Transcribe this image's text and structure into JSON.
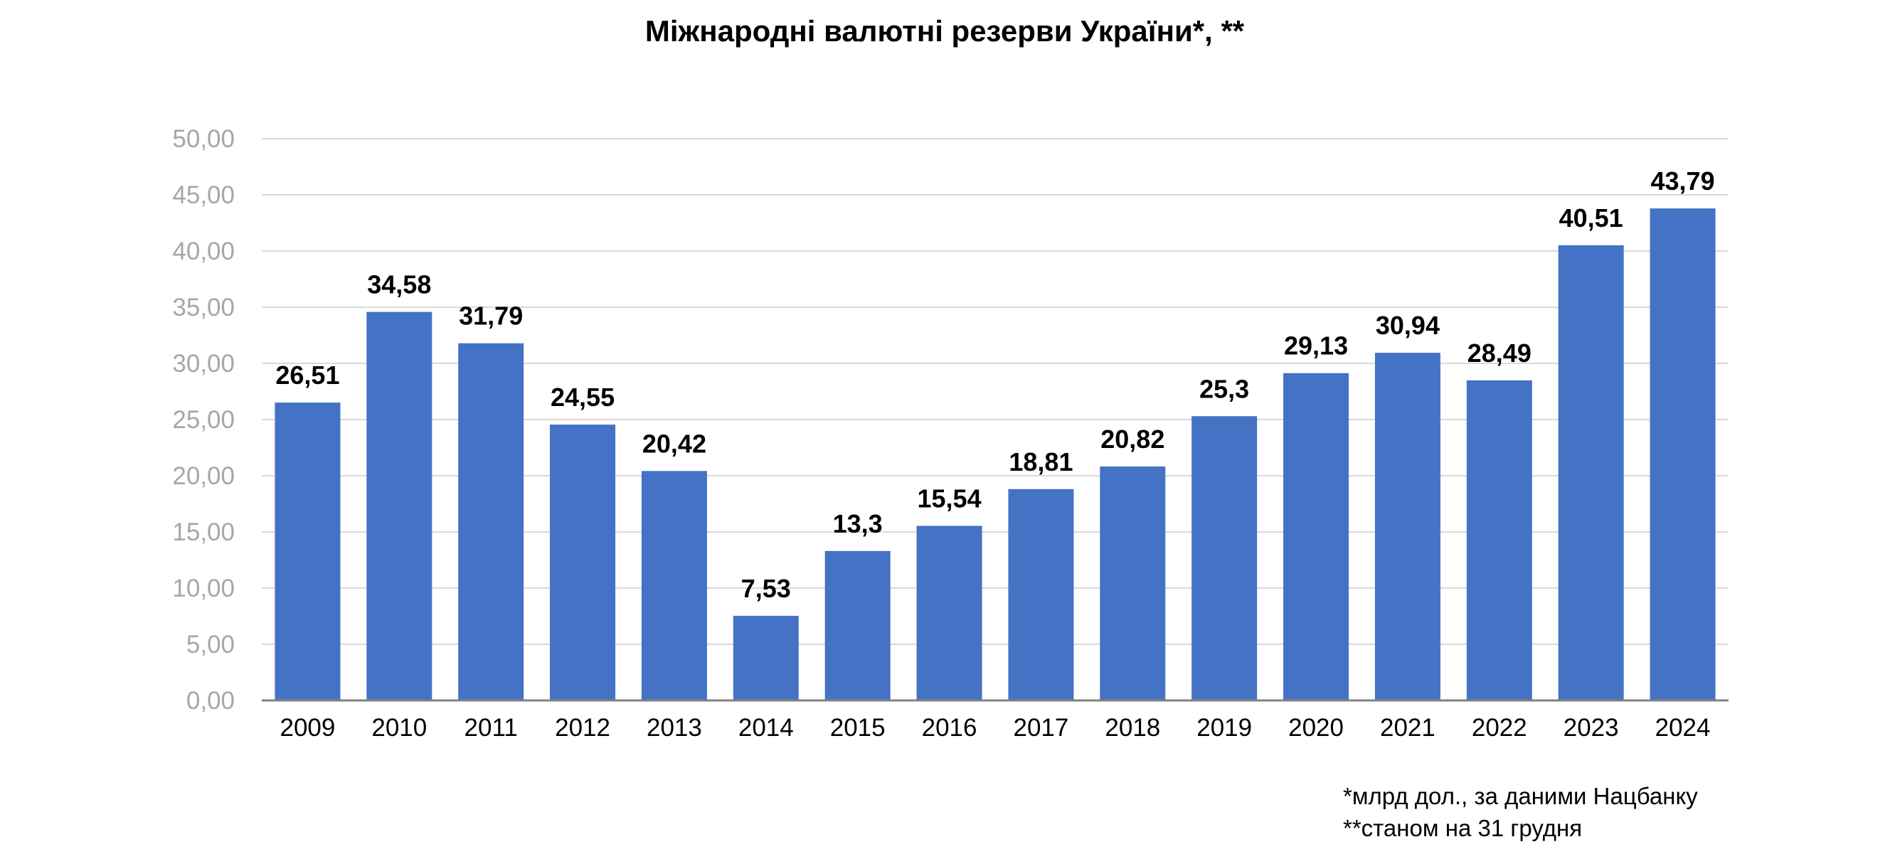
{
  "chart_data": {
    "type": "bar",
    "title": "Міжнародні валютні резерви України*, **",
    "xlabel": "",
    "ylabel": "",
    "categories": [
      "2009",
      "2010",
      "2011",
      "2012",
      "2013",
      "2014",
      "2015",
      "2016",
      "2017",
      "2018",
      "2019",
      "2020",
      "2021",
      "2022",
      "2023",
      "2024"
    ],
    "values": [
      26.51,
      34.58,
      31.79,
      24.55,
      20.42,
      7.53,
      13.3,
      15.54,
      18.81,
      20.82,
      25.3,
      29.13,
      30.94,
      28.49,
      40.51,
      43.79
    ],
    "data_labels": [
      "26,51",
      "34,58",
      "31,79",
      "24,55",
      "20,42",
      "7,53",
      "13,3",
      "15,54",
      "18,81",
      "20,82",
      "25,3",
      "29,13",
      "30,94",
      "28,49",
      "40,51",
      "43,79"
    ],
    "ylim": [
      0,
      50
    ],
    "y_ticks": [
      "0,00",
      "5,00",
      "10,00",
      "15,00",
      "20,00",
      "25,00",
      "30,00",
      "35,00",
      "40,00",
      "45,00",
      "50,00"
    ],
    "grid": true,
    "legend": "none",
    "bar_color": "#4472c4",
    "footnotes": [
      "*млрд дол., за даними Нацбанку",
      "**станом на 31 грудня"
    ]
  }
}
